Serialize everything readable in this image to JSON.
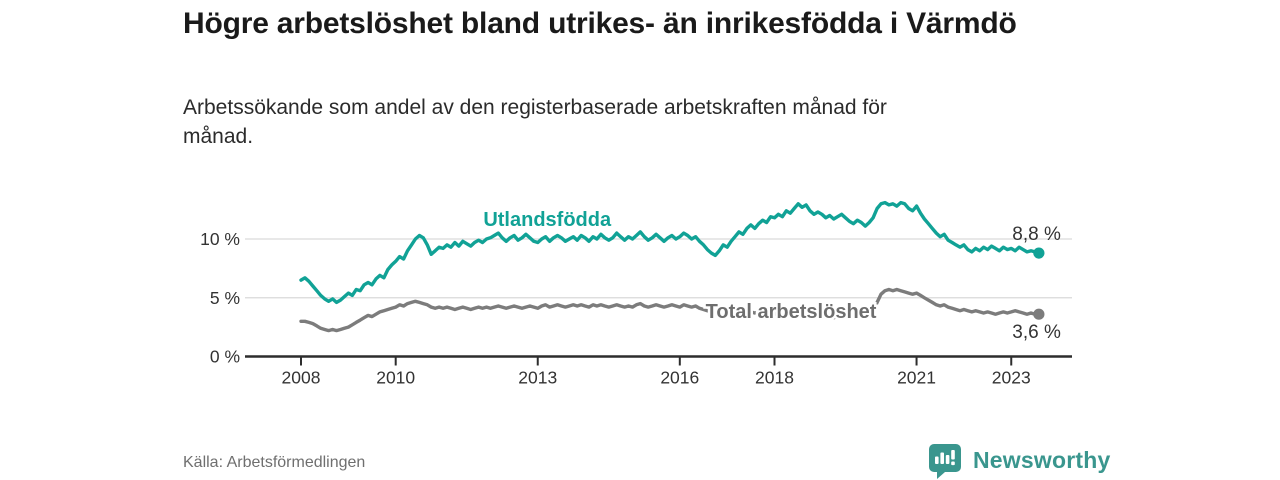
{
  "header": {
    "title": "Högre arbetslöshet bland utrikes- än inrikesfödda i Värmdö",
    "subtitle": "Arbetssökande som andel av den registerbaserade arbetskraften månad för månad."
  },
  "footer": {
    "source": "Källa: Arbetsförmedlingen",
    "brand": "Newsworthy",
    "brand_icon": "speech-bubble-bar-chart-icon"
  },
  "colors": {
    "accent_teal": "#11a296",
    "series_gray": "#7c7c7c",
    "gray_label": "#6e6e6e",
    "text_dark": "#333333",
    "grid": "#d9d9d9",
    "axis": "#2d2d2d",
    "muted": "#6f6f6f",
    "brand_teal": "#3a968e"
  },
  "chart_data": {
    "type": "line",
    "title": "Högre arbetslöshet bland utrikes- än inrikesfödda i Värmdö",
    "subtitle": "Arbetssökande som andel av den registerbaserade arbetskraften månad för månad.",
    "unit": "%",
    "x_start_year": 2008.0,
    "x_step_months": 1,
    "xlim": [
      2006.8,
      2024.4
    ],
    "ylim": [
      0,
      15
    ],
    "grid": "horizontal",
    "legend_position": "inline-labels",
    "y_ticks": [
      {
        "value": 0,
        "label": "0 %"
      },
      {
        "value": 5,
        "label": "5 %"
      },
      {
        "value": 10,
        "label": "10 %"
      }
    ],
    "x_ticks": [
      {
        "year": 2008,
        "label": "2008"
      },
      {
        "year": 2010,
        "label": "2010"
      },
      {
        "year": 2013,
        "label": "2013"
      },
      {
        "year": 2016,
        "label": "2016"
      },
      {
        "year": 2018,
        "label": "2018"
      },
      {
        "year": 2021,
        "label": "2021"
      },
      {
        "year": 2023,
        "label": "2023"
      }
    ],
    "series": [
      {
        "name": "Utlandsfödda",
        "color": "#11a296",
        "label_color": "#11a296",
        "annotation": {
          "text": "Utlandsfödda",
          "year": 2013.2,
          "pct": 11.7
        },
        "end_label": {
          "text": "8,8 %",
          "position": "above",
          "value": 8.8
        },
        "values": [
          6.5,
          6.7,
          6.4,
          6.0,
          5.6,
          5.2,
          4.9,
          4.7,
          4.9,
          4.6,
          4.8,
          5.1,
          5.4,
          5.2,
          5.7,
          5.6,
          6.1,
          6.3,
          6.1,
          6.6,
          6.9,
          6.7,
          7.4,
          7.8,
          8.1,
          8.5,
          8.3,
          9.0,
          9.5,
          10.0,
          10.3,
          10.1,
          9.5,
          8.7,
          9.0,
          9.3,
          9.2,
          9.5,
          9.3,
          9.7,
          9.4,
          9.8,
          9.6,
          9.4,
          9.7,
          9.9,
          9.7,
          10.0,
          10.1,
          10.3,
          10.5,
          10.1,
          9.8,
          10.1,
          10.3,
          9.9,
          10.1,
          10.4,
          10.1,
          9.8,
          9.7,
          10.0,
          10.2,
          9.8,
          10.1,
          10.3,
          10.1,
          9.8,
          10.0,
          10.2,
          9.9,
          10.3,
          10.1,
          9.8,
          10.2,
          10.0,
          10.4,
          10.1,
          9.9,
          10.1,
          10.5,
          10.2,
          9.9,
          10.2,
          10.0,
          10.3,
          10.6,
          10.2,
          9.9,
          10.1,
          10.4,
          10.1,
          9.8,
          10.1,
          10.3,
          10.0,
          10.2,
          10.5,
          10.3,
          10.0,
          10.2,
          9.8,
          9.5,
          9.1,
          8.8,
          8.6,
          9.0,
          9.5,
          9.3,
          9.8,
          10.2,
          10.6,
          10.4,
          10.9,
          11.2,
          10.9,
          11.3,
          11.6,
          11.4,
          11.9,
          11.8,
          12.1,
          11.9,
          12.4,
          12.2,
          12.6,
          13.0,
          12.7,
          12.9,
          12.4,
          12.1,
          12.3,
          12.1,
          11.8,
          12.0,
          11.7,
          11.9,
          12.1,
          11.8,
          11.5,
          11.3,
          11.6,
          11.4,
          11.1,
          11.4,
          11.8,
          12.6,
          13.0,
          13.1,
          12.9,
          13.0,
          12.8,
          13.1,
          13.0,
          12.6,
          12.4,
          12.8,
          12.2,
          11.7,
          11.3,
          10.9,
          10.5,
          10.2,
          10.4,
          9.9,
          9.7,
          9.5,
          9.3,
          9.5,
          9.1,
          8.9,
          9.2,
          9.0,
          9.3,
          9.1,
          9.4,
          9.2,
          9.0,
          9.3,
          9.1,
          9.2,
          9.0,
          9.3,
          9.1,
          8.9,
          9.0,
          8.9,
          8.8
        ]
      },
      {
        "name": "Total arbetslöshet",
        "color": "#7c7c7c",
        "label_color": "#6e6e6e",
        "annotation": {
          "text": "Total arbetslöshet",
          "year": 2018.35,
          "pct": 3.87
        },
        "end_label": {
          "text": "3,6 %",
          "position": "below",
          "value": 3.6
        },
        "values": [
          3.0,
          3.0,
          2.9,
          2.8,
          2.6,
          2.4,
          2.3,
          2.2,
          2.3,
          2.2,
          2.3,
          2.4,
          2.5,
          2.7,
          2.9,
          3.1,
          3.3,
          3.5,
          3.4,
          3.6,
          3.8,
          3.9,
          4.0,
          4.1,
          4.2,
          4.4,
          4.3,
          4.5,
          4.6,
          4.7,
          4.6,
          4.5,
          4.4,
          4.2,
          4.1,
          4.2,
          4.1,
          4.2,
          4.1,
          4.0,
          4.1,
          4.2,
          4.1,
          4.0,
          4.1,
          4.2,
          4.1,
          4.2,
          4.1,
          4.2,
          4.3,
          4.2,
          4.1,
          4.2,
          4.3,
          4.2,
          4.1,
          4.2,
          4.3,
          4.2,
          4.1,
          4.3,
          4.4,
          4.2,
          4.3,
          4.4,
          4.3,
          4.2,
          4.3,
          4.4,
          4.3,
          4.4,
          4.3,
          4.2,
          4.4,
          4.3,
          4.4,
          4.3,
          4.2,
          4.3,
          4.4,
          4.3,
          4.2,
          4.3,
          4.2,
          4.4,
          4.5,
          4.3,
          4.2,
          4.3,
          4.4,
          4.3,
          4.2,
          4.3,
          4.4,
          4.3,
          4.2,
          4.4,
          4.3,
          4.2,
          4.3,
          4.1,
          4.0,
          3.9,
          3.8,
          3.7,
          3.8,
          3.9,
          3.8,
          3.9,
          4.0,
          3.9,
          3.8,
          3.9,
          3.8,
          3.7,
          3.8,
          3.7,
          3.6,
          3.7,
          3.6,
          3.7,
          3.6,
          3.5,
          3.6,
          3.5,
          3.4,
          3.5,
          3.4,
          3.5,
          3.4,
          3.5,
          3.4,
          3.5,
          3.4,
          3.3,
          3.4,
          3.5,
          3.4,
          3.3,
          3.4,
          3.5,
          3.4,
          3.5,
          3.6,
          3.8,
          4.6,
          5.3,
          5.6,
          5.7,
          5.6,
          5.7,
          5.6,
          5.5,
          5.4,
          5.3,
          5.4,
          5.2,
          5.0,
          4.8,
          4.6,
          4.4,
          4.3,
          4.4,
          4.2,
          4.1,
          4.0,
          3.9,
          4.0,
          3.9,
          3.8,
          3.9,
          3.8,
          3.7,
          3.8,
          3.7,
          3.6,
          3.7,
          3.8,
          3.7,
          3.8,
          3.9,
          3.8,
          3.7,
          3.6,
          3.7,
          3.6,
          3.6
        ]
      }
    ]
  }
}
